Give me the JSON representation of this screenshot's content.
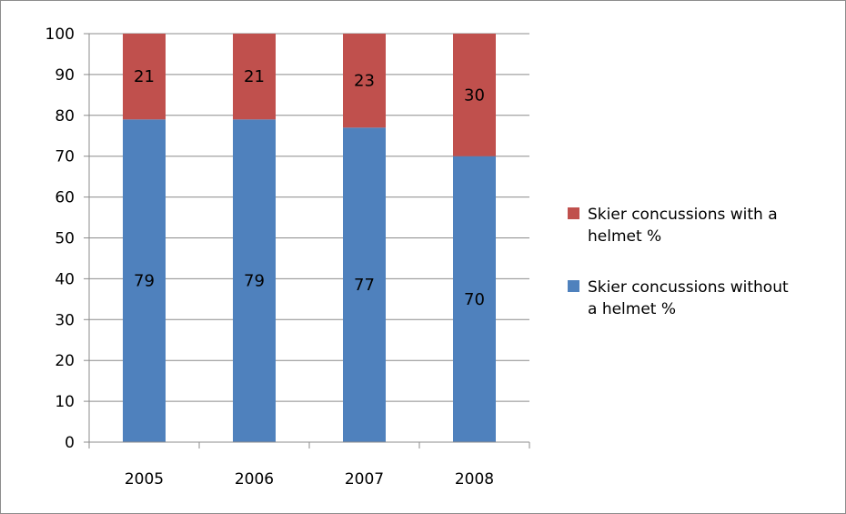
{
  "chart_data": {
    "type": "bar",
    "stacked": true,
    "percent": true,
    "categories": [
      "2005",
      "2006",
      "2007",
      "2008"
    ],
    "series": [
      {
        "name": "Skier concussions without a helmet %",
        "values": [
          79,
          79,
          77,
          70
        ],
        "color": "#4F81BD"
      },
      {
        "name": "Skier concussions with a helmet %",
        "values": [
          21,
          21,
          23,
          30
        ],
        "color": "#C0504D"
      }
    ],
    "ylim": [
      0,
      100
    ],
    "yticks": [
      0,
      10,
      20,
      30,
      40,
      50,
      60,
      70,
      80,
      90,
      100
    ],
    "grid": true,
    "legend_position": "right",
    "legend": [
      {
        "name": "Skier concussions with a helmet %",
        "lines": [
          "Skier concussions with a",
          "helmet %"
        ],
        "color": "#C0504D"
      },
      {
        "name": "Skier concussions without a helmet %",
        "lines": [
          "Skier concussions without",
          "a helmet %"
        ],
        "color": "#4F81BD"
      }
    ],
    "title": "",
    "xlabel": "",
    "ylabel": ""
  }
}
